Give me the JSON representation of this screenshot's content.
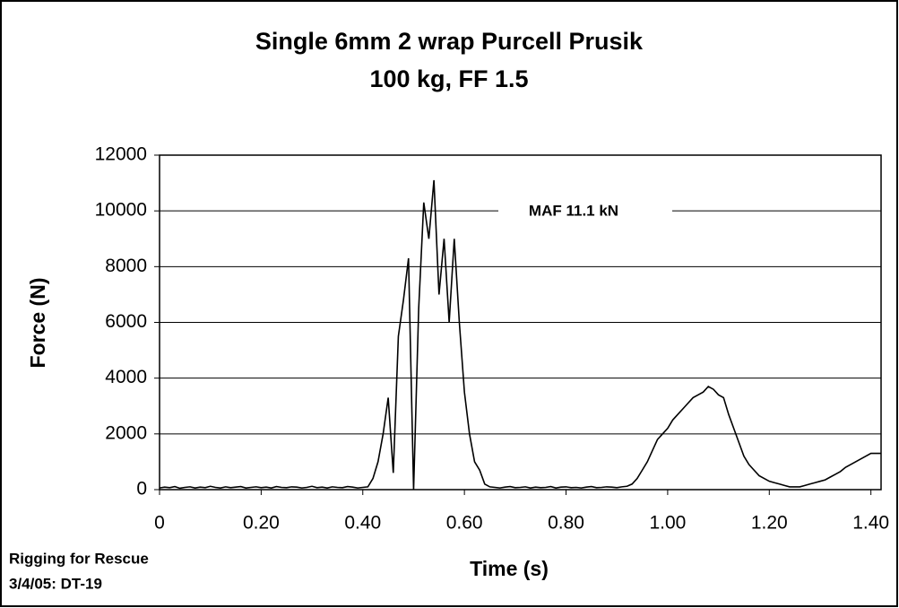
{
  "chart_data": {
    "type": "line",
    "title": "Single 6mm 2 wrap Purcell Prusik",
    "subtitle": "100 kg, FF 1.5",
    "x_label": "Time (s)",
    "y_label": "Force (N)",
    "annotation": "MAF 11.1 kN",
    "source": "Rigging for Rescue",
    "note": "3/4/05: DT-19",
    "color": "#000000",
    "grid": true,
    "xlim": [
      0,
      1.42
    ],
    "ylim": [
      0,
      12000
    ],
    "xticks": [
      0,
      {
        "value": 0.2,
        "label": "0.20"
      },
      {
        "value": 0.4,
        "label": "0.40"
      },
      {
        "value": 0.6,
        "label": "0.60"
      },
      {
        "value": 0.8,
        "label": "0.80"
      },
      {
        "value": 1.0,
        "label": "1.00"
      },
      {
        "value": 1.2,
        "label": "1.20"
      },
      {
        "value": 1.4,
        "label": "1.40"
      }
    ],
    "yticks": [
      0,
      2000,
      4000,
      6000,
      8000,
      10000,
      12000
    ],
    "x": [
      0,
      0.01,
      0.02,
      0.03,
      0.04,
      0.05,
      0.06,
      0.07,
      0.08,
      0.09,
      0.1,
      0.11,
      0.12,
      0.13,
      0.14,
      0.15,
      0.16,
      0.17,
      0.18,
      0.19,
      0.2,
      0.21,
      0.22,
      0.23,
      0.24,
      0.25,
      0.26,
      0.27,
      0.28,
      0.29,
      0.3,
      0.31,
      0.32,
      0.33,
      0.34,
      0.35,
      0.36,
      0.37,
      0.38,
      0.39,
      0.4,
      0.41,
      0.42,
      0.43,
      0.44,
      0.45,
      0.46,
      0.47,
      0.48,
      0.49,
      0.5,
      0.51,
      0.52,
      0.53,
      0.54,
      0.55,
      0.56,
      0.57,
      0.58,
      0.59,
      0.6,
      0.61,
      0.62,
      0.63,
      0.64,
      0.65,
      0.66,
      0.67,
      0.68,
      0.69,
      0.7,
      0.71,
      0.72,
      0.73,
      0.74,
      0.75,
      0.76,
      0.77,
      0.78,
      0.79,
      0.8,
      0.81,
      0.82,
      0.83,
      0.84,
      0.85,
      0.86,
      0.87,
      0.88,
      0.89,
      0.9,
      0.91,
      0.92,
      0.93,
      0.94,
      0.95,
      0.96,
      0.97,
      0.98,
      0.99,
      1.0,
      1.01,
      1.02,
      1.03,
      1.04,
      1.05,
      1.06,
      1.07,
      1.08,
      1.09,
      1.1,
      1.11,
      1.12,
      1.13,
      1.14,
      1.15,
      1.16,
      1.17,
      1.18,
      1.19,
      1.2,
      1.21,
      1.22,
      1.23,
      1.24,
      1.25,
      1.26,
      1.27,
      1.28,
      1.29,
      1.3,
      1.31,
      1.32,
      1.33,
      1.34,
      1.35,
      1.36,
      1.37,
      1.38,
      1.39,
      1.4,
      1.41,
      1.42
    ],
    "values": [
      60,
      90,
      70,
      110,
      50,
      80,
      100,
      60,
      90,
      70,
      120,
      80,
      60,
      100,
      70,
      90,
      110,
      60,
      80,
      100,
      70,
      90,
      60,
      110,
      80,
      70,
      100,
      90,
      60,
      80,
      120,
      70,
      90,
      60,
      100,
      80,
      70,
      110,
      90,
      60,
      80,
      100,
      400,
      1000,
      2000,
      3300,
      600,
      5500,
      6800,
      8300,
      0,
      6500,
      10300,
      9000,
      11100,
      7000,
      9000,
      6000,
      9000,
      6000,
      3500,
      2000,
      1000,
      700,
      200,
      100,
      80,
      60,
      90,
      110,
      70,
      80,
      100,
      60,
      90,
      70,
      80,
      110,
      60,
      90,
      100,
      70,
      80,
      60,
      90,
      110,
      70,
      80,
      100,
      90,
      70,
      100,
      120,
      200,
      400,
      700,
      1000,
      1400,
      1800,
      2000,
      2200,
      2500,
      2700,
      2900,
      3100,
      3300,
      3400,
      3500,
      3700,
      3600,
      3400,
      3300,
      2700,
      2200,
      1700,
      1200,
      900,
      700,
      500,
      400,
      300,
      250,
      200,
      150,
      100,
      100,
      100,
      150,
      200,
      250,
      300,
      350,
      450,
      550,
      650,
      800,
      900,
      1000,
      1100,
      1200,
      1300,
      1300,
      1300
    ]
  }
}
